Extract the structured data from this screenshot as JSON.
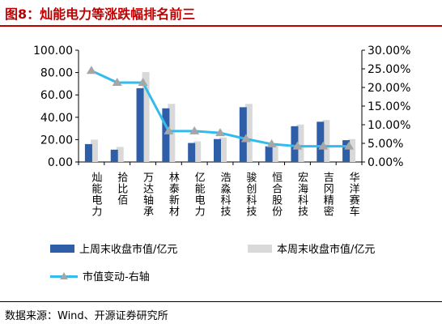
{
  "figure": {
    "title": "图8：灿能电力等涨跌幅排名前三",
    "source": "数据来源：Wind、开源证券研究所"
  },
  "chart_data": {
    "type": "bar",
    "categories": [
      "灿能电力",
      "拾比佰",
      "万达轴承",
      "林泰新材",
      "亿能电力",
      "浩淼科技",
      "骏创科技",
      "恒合股份",
      "宏海科技",
      "吉冈精密",
      "华洋赛车"
    ],
    "series": [
      {
        "name": "上周末收盘市值/亿元",
        "kind": "bar",
        "axis": "left",
        "color": "#2e5ea8",
        "values": [
          16.0,
          11.0,
          66.0,
          48.0,
          17.0,
          20.5,
          49.0,
          14.0,
          32.0,
          36.0,
          19.5
        ]
      },
      {
        "name": "本周末收盘市值/亿元",
        "kind": "bar",
        "axis": "left",
        "color": "#d9d9d9",
        "values": [
          20.0,
          13.5,
          80.5,
          52.0,
          18.5,
          22.0,
          52.0,
          14.5,
          33.5,
          37.5,
          20.5
        ]
      },
      {
        "name": "市值变动-右轴",
        "kind": "line",
        "axis": "right",
        "color": "#33bbee",
        "marker_color": "#a6a6a6",
        "values": [
          24.5,
          21.3,
          21.3,
          8.3,
          8.3,
          7.8,
          6.2,
          4.8,
          4.2,
          4.2,
          4.2
        ]
      }
    ],
    "y_left": {
      "lim": [
        0,
        100
      ],
      "ticks": [
        0,
        20,
        40,
        60,
        80,
        100
      ],
      "tick_labels": [
        "0.00",
        "20.00",
        "40.00",
        "60.00",
        "80.00",
        "100.00"
      ]
    },
    "y_right": {
      "lim": [
        0,
        30
      ],
      "ticks": [
        0,
        5,
        10,
        15,
        20,
        25,
        30
      ],
      "tick_labels": [
        "0.00%",
        "5.00%",
        "10.00%",
        "15.00%",
        "20.00%",
        "25.00%",
        "30.00%"
      ]
    },
    "grid": false,
    "legend_position": "bottom"
  }
}
